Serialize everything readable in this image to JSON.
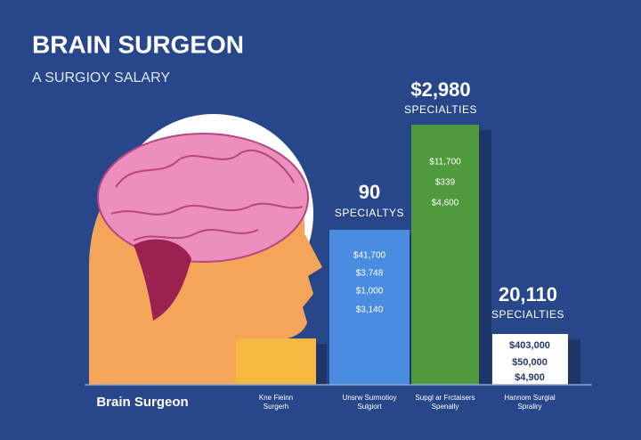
{
  "header": {
    "title": "BRAIN SURGEON",
    "subtitle": "A SURGIOY SALARY"
  },
  "figure_label": "Brain Surgeon",
  "bars": [
    {
      "heading": null,
      "subheading": null,
      "lines": [],
      "label": [
        "Kne Fieinn",
        "Surgerh"
      ]
    },
    {
      "heading": "90",
      "subheading": "SPECIALTYS",
      "lines": [
        "$41,700",
        "$3.748",
        "$1,000",
        "$3,140"
      ],
      "label": [
        "Unsrw Surmotioy",
        "Sulgiort"
      ]
    },
    {
      "heading": "$2,980",
      "subheading": "SPECIALTIES",
      "lines": [
        "$11,700",
        "$339",
        "$4,600"
      ],
      "label": [
        "Supgl ar Frctaisers",
        "Spenally"
      ]
    },
    {
      "heading": "20,110",
      "subheading": "SPECIALTIES",
      "lines": [
        "$403,000",
        "$50,000",
        "$4,900"
      ],
      "label": [
        "Hannom Surgial",
        "Spraliry"
      ]
    }
  ]
}
